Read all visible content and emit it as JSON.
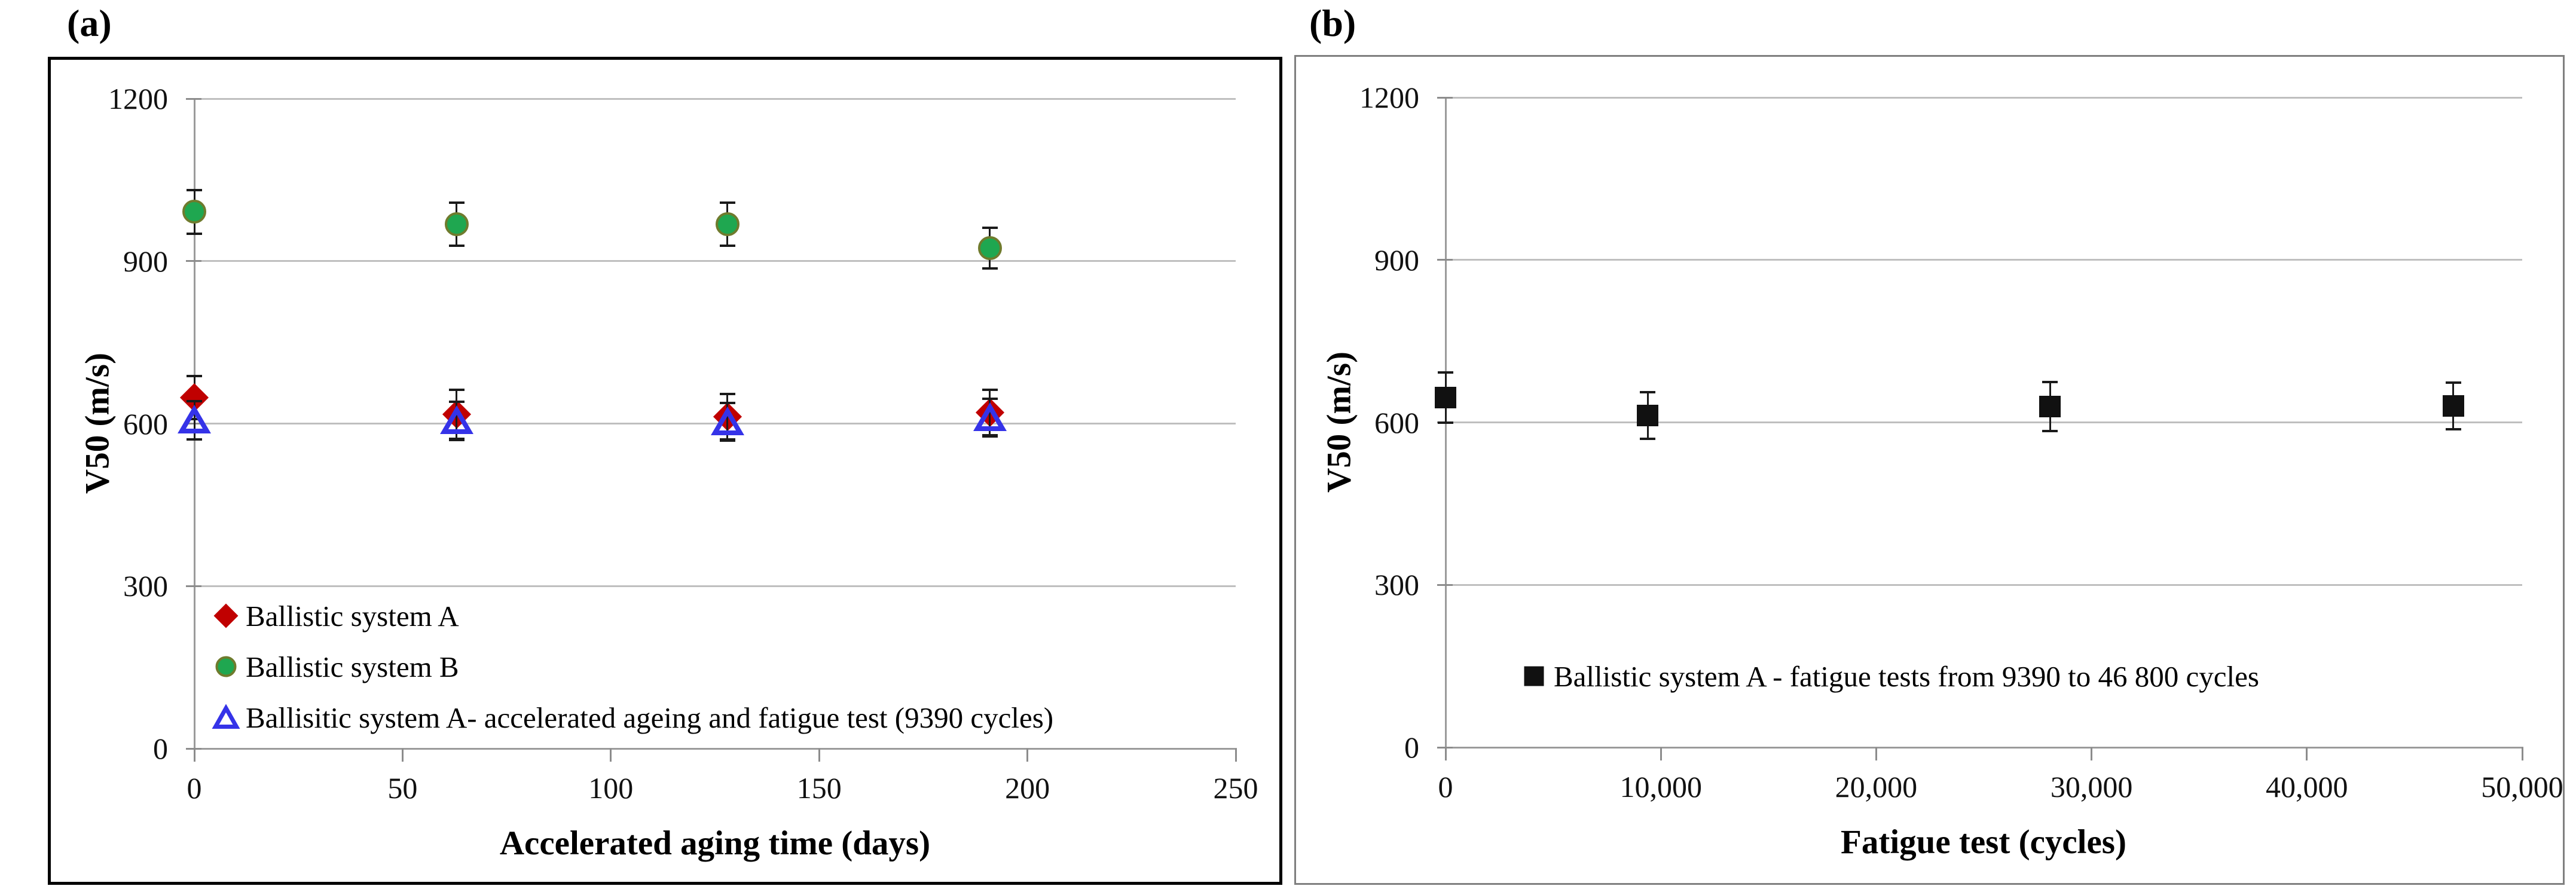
{
  "figure": {
    "panels": [
      {
        "label": "(a)",
        "x_title": "Accelerated aging time (days)",
        "y_title": "V50 (m/s)"
      },
      {
        "label": "(b)",
        "x_title": "Fatigue test (cycles)",
        "y_title": "V50 (m/s)"
      }
    ],
    "colors": {
      "system_a": "#C00000",
      "system_b": "#1FA750",
      "system_b_edge": "#6F7B2D",
      "system_a_aged": "#3533E8",
      "fatigue_square": "#111111",
      "gridline": "#BFBFBF",
      "axis": "#9B9B9B",
      "panel_a_border": "#000000",
      "panel_b_border": "#7F7F7F"
    }
  },
  "chart_data": [
    {
      "type": "scatter",
      "title": "(a)",
      "xlabel": "Accelerated aging time (days)",
      "ylabel": "V50 (m/s)",
      "xlim": [
        0,
        250
      ],
      "ylim": [
        0,
        1200
      ],
      "xticks": [
        0,
        50,
        100,
        150,
        200,
        250
      ],
      "xtick_labels": [
        "0",
        "50",
        "100",
        "150",
        "200",
        "250"
      ],
      "yticks": [
        0,
        300,
        600,
        900,
        1200
      ],
      "ytick_labels": [
        "0",
        "300",
        "600",
        "900",
        "1200"
      ],
      "grid": "horizontal",
      "legend_position": "inside-bottom-left",
      "series": [
        {
          "name": "Ballistic system A",
          "marker": "diamond",
          "color": "#C00000",
          "x": [
            0,
            63,
            128,
            191
          ],
          "y": [
            648,
            617,
            613,
            620
          ],
          "yerr": [
            40,
            45,
            42,
            42
          ]
        },
        {
          "name": "Ballistic system B",
          "marker": "circle",
          "color": "#1FA750",
          "edge": "#6F7B2D",
          "x": [
            0,
            63,
            128,
            191
          ],
          "y": [
            991,
            968,
            968,
            924
          ],
          "yerr": [
            40,
            40,
            40,
            37
          ]
        },
        {
          "name": "Ballisitic system A- accelerated ageing and fatigue test (9390 cycles)",
          "marker": "triangle-open",
          "color": "#3533E8",
          "x": [
            0,
            63,
            128,
            191
          ],
          "y": [
            606,
            605,
            603,
            611
          ],
          "yerr": [
            35,
            35,
            35,
            35
          ]
        }
      ]
    },
    {
      "type": "scatter",
      "title": "(b)",
      "xlabel": "Fatigue test (cycles)",
      "ylabel": "V50 (m/s)",
      "xlim": [
        0,
        50000
      ],
      "ylim": [
        0,
        1200
      ],
      "xticks": [
        0,
        10000,
        20000,
        30000,
        40000,
        50000
      ],
      "xtick_labels": [
        "0",
        "10,000",
        "20,000",
        "30,000",
        "40,000",
        "50,000"
      ],
      "yticks": [
        0,
        300,
        600,
        900,
        1200
      ],
      "ytick_labels": [
        "0",
        "300",
        "600",
        "900",
        "1200"
      ],
      "grid": "horizontal",
      "legend_position": "inside-bottom-center",
      "series": [
        {
          "name": "Ballistic system A - fatigue tests from 9390 to 46 800 cycles",
          "marker": "square",
          "color": "#111111",
          "x": [
            0,
            9390,
            28080,
            46800
          ],
          "y": [
            646,
            613,
            629,
            630
          ],
          "yerr": [
            46,
            43,
            45,
            43
          ]
        }
      ]
    }
  ]
}
